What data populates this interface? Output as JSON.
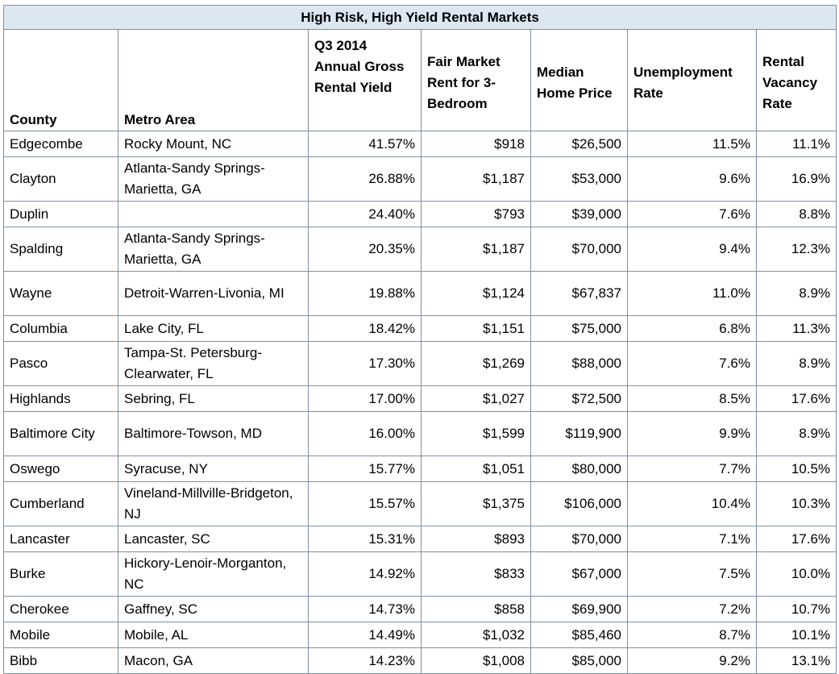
{
  "title": "High Risk, High Yield Rental Markets",
  "columns": [
    "County",
    "Metro Area",
    "Q3 2014 Annual Gross Rental Yield",
    "Fair Market Rent for 3-Bedroom",
    "Median Home Price",
    "Unemployment Rate",
    "Rental Vacancy Rate"
  ],
  "rows": [
    {
      "county": "Edgecombe",
      "metro": "Rocky Mount, NC",
      "yield": "41.57%",
      "fmr": "$918",
      "price": "$26,500",
      "unemp": "11.5%",
      "vacancy": "11.1%"
    },
    {
      "county": "Clayton",
      "metro": "Atlanta-Sandy Springs-Marietta, GA",
      "yield": "26.88%",
      "fmr": "$1,187",
      "price": "$53,000",
      "unemp": "9.6%",
      "vacancy": "16.9%"
    },
    {
      "county": "Duplin",
      "metro": "",
      "yield": "24.40%",
      "fmr": "$793",
      "price": "$39,000",
      "unemp": "7.6%",
      "vacancy": "8.8%"
    },
    {
      "county": "Spalding",
      "metro": "Atlanta-Sandy Springs-Marietta, GA",
      "yield": "20.35%",
      "fmr": "$1,187",
      "price": "$70,000",
      "unemp": "9.4%",
      "vacancy": "12.3%"
    },
    {
      "county": "Wayne",
      "metro": "Detroit-Warren-Livonia, MI",
      "yield": "19.88%",
      "fmr": "$1,124",
      "price": "$67,837",
      "unemp": "11.0%",
      "vacancy": "8.9%"
    },
    {
      "county": "Columbia",
      "metro": "Lake City, FL",
      "yield": "18.42%",
      "fmr": "$1,151",
      "price": "$75,000",
      "unemp": "6.8%",
      "vacancy": "11.3%"
    },
    {
      "county": "Pasco",
      "metro": "Tampa-St. Petersburg-Clearwater, FL",
      "yield": "17.30%",
      "fmr": "$1,269",
      "price": "$88,000",
      "unemp": "7.6%",
      "vacancy": "8.9%"
    },
    {
      "county": "Highlands",
      "metro": "Sebring, FL",
      "yield": "17.00%",
      "fmr": "$1,027",
      "price": "$72,500",
      "unemp": "8.5%",
      "vacancy": "17.6%"
    },
    {
      "county": "Baltimore City",
      "metro": "Baltimore-Towson, MD",
      "yield": "16.00%",
      "fmr": "$1,599",
      "price": "$119,900",
      "unemp": "9.9%",
      "vacancy": "8.9%"
    },
    {
      "county": "Oswego",
      "metro": "Syracuse, NY",
      "yield": "15.77%",
      "fmr": "$1,051",
      "price": "$80,000",
      "unemp": "7.7%",
      "vacancy": "10.5%"
    },
    {
      "county": "Cumberland",
      "metro": "Vineland-Millville-Bridgeton, NJ",
      "yield": "15.57%",
      "fmr": "$1,375",
      "price": "$106,000",
      "unemp": "10.4%",
      "vacancy": "10.3%"
    },
    {
      "county": "Lancaster",
      "metro": "Lancaster, SC",
      "yield": "15.31%",
      "fmr": "$893",
      "price": "$70,000",
      "unemp": "7.1%",
      "vacancy": "17.6%"
    },
    {
      "county": "Burke",
      "metro": "Hickory-Lenoir-Morganton, NC",
      "yield": "14.92%",
      "fmr": "$833",
      "price": "$67,000",
      "unemp": "7.5%",
      "vacancy": "10.0%"
    },
    {
      "county": "Cherokee",
      "metro": "Gaffney, SC",
      "yield": "14.73%",
      "fmr": "$858",
      "price": "$69,900",
      "unemp": "7.2%",
      "vacancy": "10.7%"
    },
    {
      "county": "Mobile",
      "metro": "Mobile, AL",
      "yield": "14.49%",
      "fmr": "$1,032",
      "price": "$85,460",
      "unemp": "8.7%",
      "vacancy": "10.1%"
    },
    {
      "county": "Bibb",
      "metro": "Macon, GA",
      "yield": "14.23%",
      "fmr": "$1,008",
      "price": "$85,000",
      "unemp": "9.2%",
      "vacancy": "13.1%"
    }
  ],
  "colors": {
    "title_background": "#dde7f2",
    "grid_line": "#7f8fa6"
  }
}
